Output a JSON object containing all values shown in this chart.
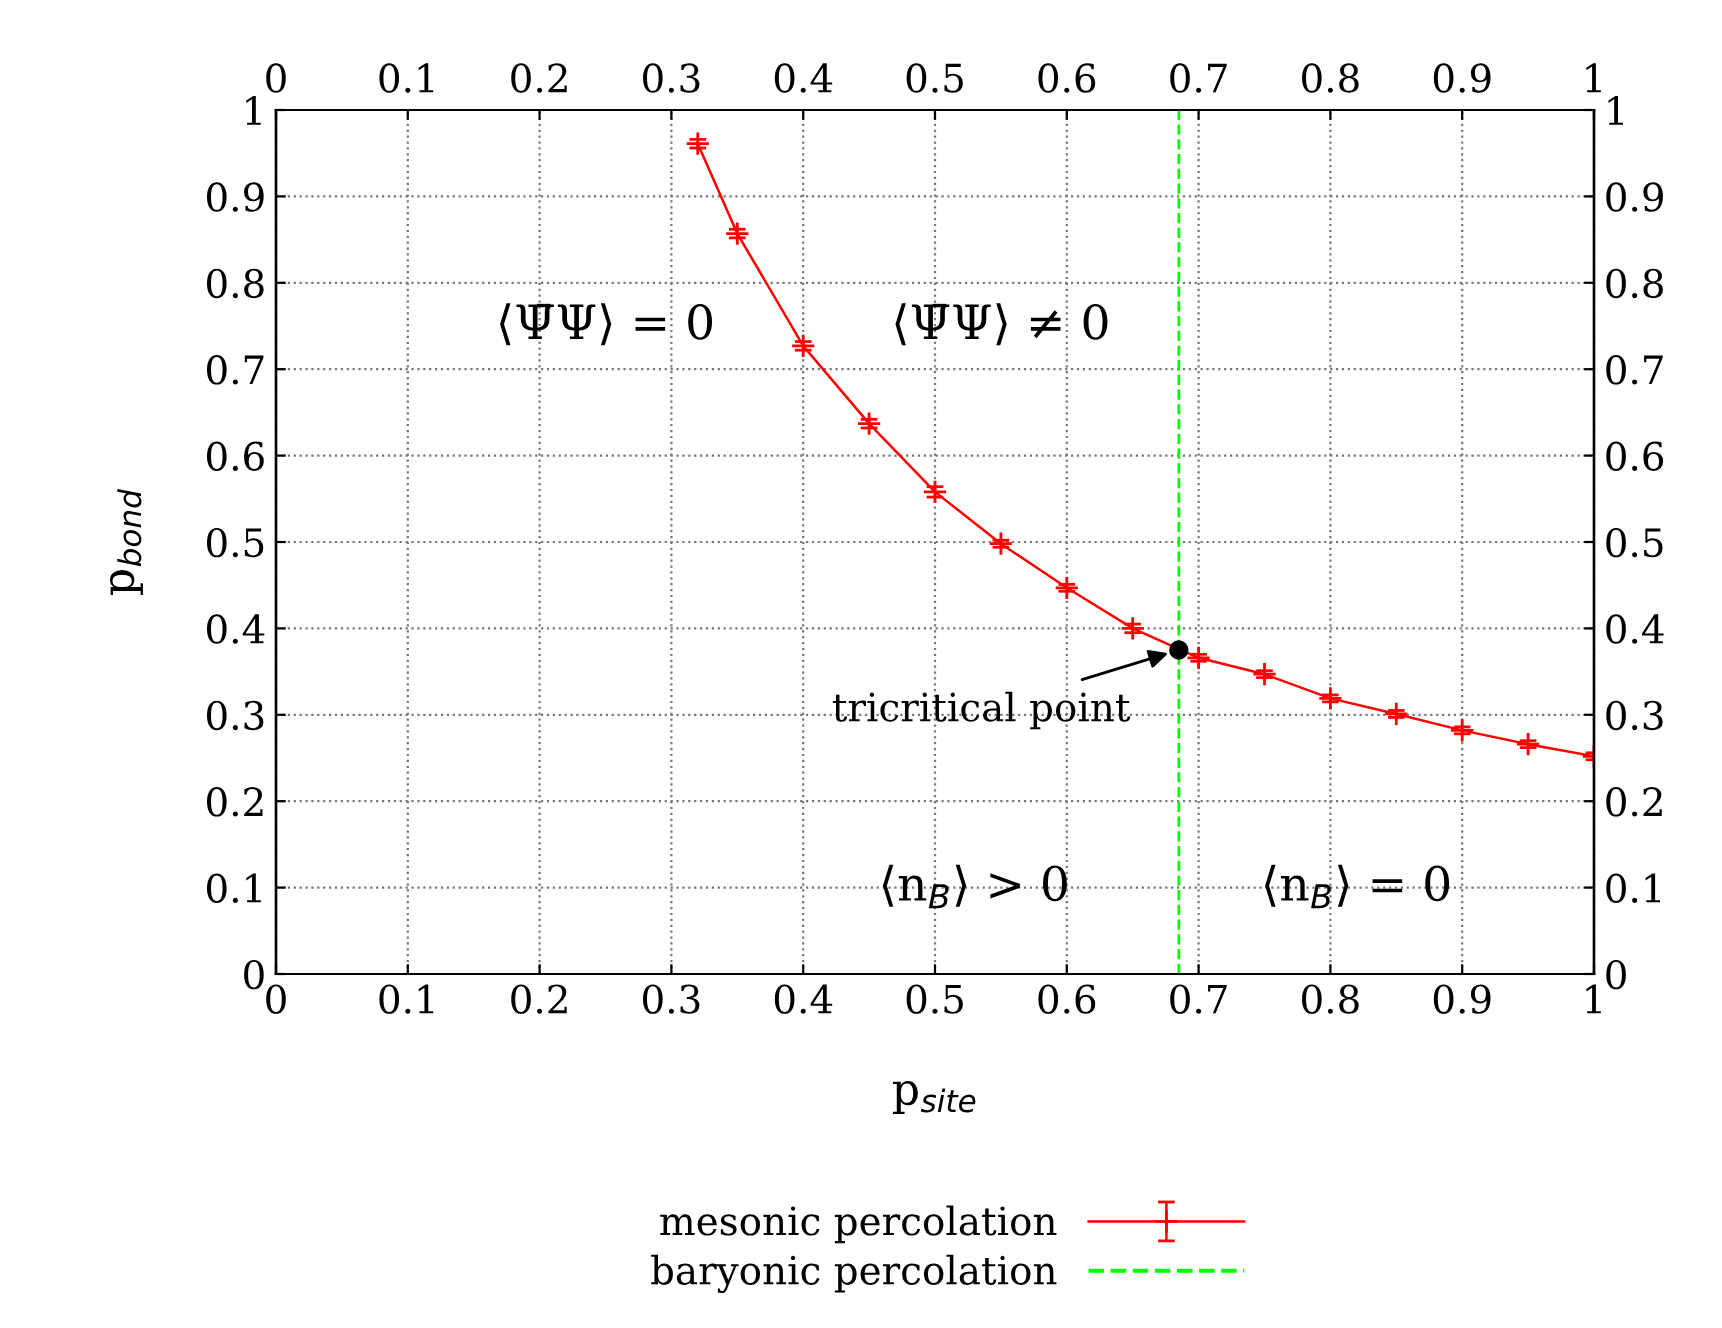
{
  "chart_data": {
    "type": "line",
    "xlabel": "p$_{site}$",
    "ylabel": "p$_{bond}$",
    "x": [
      0.32,
      0.35,
      0.4,
      0.45,
      0.5,
      0.55,
      0.6,
      0.65,
      0.7,
      0.75,
      0.8,
      0.85,
      0.9,
      0.95,
      1
    ],
    "series": [
      {
        "name": "mesonic percolation",
        "color": "#ff0000",
        "values": [
          0.961,
          0.857,
          0.727,
          0.637,
          0.558,
          0.498,
          0.447,
          0.4,
          0.366,
          0.347,
          0.319,
          0.301,
          0.282,
          0.266,
          0.252
        ],
        "errors": [
          0.005,
          0.005,
          0.005,
          0.005,
          0.006,
          0.004,
          0.004,
          0.005,
          0.004,
          0.004,
          0.004,
          0.004,
          0.004,
          0.004,
          0.004
        ]
      }
    ],
    "marker": "cross",
    "line_style": "solid",
    "ref_lines": [
      {
        "axis": "x",
        "value": 0.685,
        "label": "baryonic percolation",
        "color": "#00ff00",
        "line_style": "dashed"
      }
    ],
    "annotations": [
      "⟨Ψ̄Ψ⟩ = 0",
      "⟨Ψ̄Ψ⟩ ≠ 0",
      "⟨n$_{B}$⟩ > 0",
      "⟨n$_{B}$⟩ = 0",
      {
        "text": "tricritical point",
        "x": 0.685,
        "y": 0.375
      }
    ],
    "xlim": [
      0,
      1
    ],
    "ylim": [
      0,
      1
    ],
    "xticks": [
      0,
      0.1,
      0.2,
      0.3,
      0.4,
      0.5,
      0.6,
      0.7,
      0.8,
      0.9,
      1
    ],
    "yticks": [
      0,
      0.1,
      0.2,
      0.3,
      0.4,
      0.5,
      0.6,
      0.7,
      0.8,
      0.9,
      1
    ],
    "x2lim": [
      0,
      1
    ],
    "x2ticks": [
      0,
      0.1,
      0.2,
      0.3,
      0.4,
      0.5,
      0.6,
      0.7,
      0.8,
      0.9,
      1
    ],
    "y2lim": [
      0,
      1
    ],
    "y2ticks": [
      0,
      0.1,
      0.2,
      0.3,
      0.4,
      0.5,
      0.6,
      0.7,
      0.8,
      0.9,
      1
    ],
    "grid": true,
    "legend": "bottom"
  }
}
